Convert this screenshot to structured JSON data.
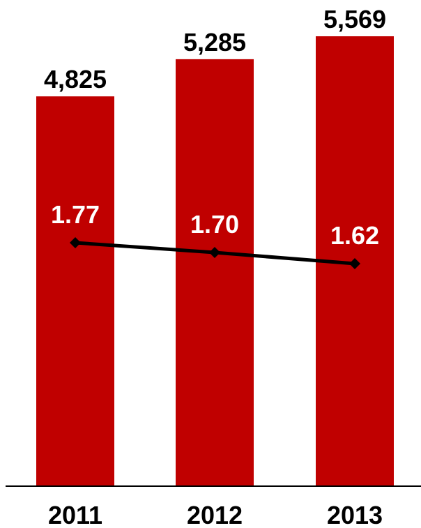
{
  "chart_data": {
    "type": "bar",
    "categories": [
      "2011",
      "2012",
      "2013"
    ],
    "series": [
      {
        "type": "bar",
        "values": [
          4825,
          5285,
          5569
        ],
        "value_labels": [
          "4,825",
          "5,285",
          "5,569"
        ],
        "color": "#c00000"
      },
      {
        "type": "line",
        "values": [
          1.77,
          1.7,
          1.62
        ],
        "value_labels": [
          "1.77",
          "1.70",
          "1.62"
        ],
        "color": "#000000",
        "marker": "diamond"
      }
    ],
    "title": "",
    "xlabel": "",
    "ylabel": "",
    "grid": false,
    "legend": "none"
  }
}
